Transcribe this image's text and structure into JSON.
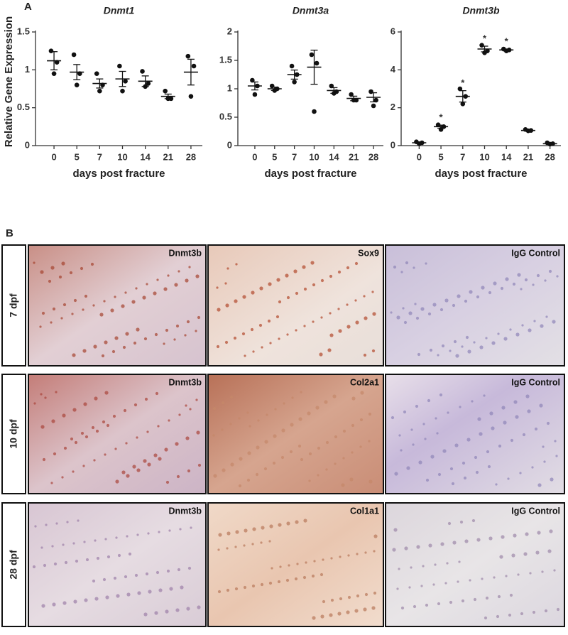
{
  "panel_a": "A",
  "panel_b": "B",
  "chart_data": [
    {
      "type": "dot",
      "title": "Dnmt1",
      "y_label": "Relative Gene Expression",
      "x_label": "days post fracture",
      "categories": [
        "0",
        "5",
        "7",
        "10",
        "14",
        "21",
        "28"
      ],
      "values": [
        1.12,
        0.97,
        0.82,
        0.88,
        0.85,
        0.65,
        0.97
      ],
      "errors": [
        0.12,
        0.1,
        0.06,
        0.1,
        0.07,
        0.03,
        0.17
      ],
      "replicates": [
        [
          1.25,
          1.1,
          0.95
        ],
        [
          1.2,
          0.95,
          0.8
        ],
        [
          0.95,
          0.8,
          0.72
        ],
        [
          1.05,
          0.85,
          0.72
        ],
        [
          0.98,
          0.82,
          0.78
        ],
        [
          0.72,
          0.62,
          0.62
        ],
        [
          1.18,
          1.05,
          0.65
        ]
      ],
      "annotations": [
        null,
        null,
        null,
        null,
        null,
        null,
        null
      ],
      "ylim": [
        0,
        1.5
      ],
      "yticks": [
        0,
        0.5,
        1,
        1.5
      ],
      "color": "#111111"
    },
    {
      "type": "dot",
      "title": "Dnmt3a",
      "x_label": "days post fracture",
      "categories": [
        "0",
        "5",
        "7",
        "10",
        "14",
        "21",
        "28"
      ],
      "values": [
        1.05,
        1.0,
        1.25,
        1.38,
        0.97,
        0.83,
        0.85
      ],
      "errors": [
        0.07,
        0.03,
        0.08,
        0.3,
        0.05,
        0.04,
        0.08
      ],
      "replicates": [
        [
          1.15,
          1.05,
          0.9
        ],
        [
          1.05,
          1.0,
          0.97
        ],
        [
          1.4,
          1.25,
          1.12
        ],
        [
          1.6,
          1.45,
          0.6
        ],
        [
          1.05,
          0.95,
          0.92
        ],
        [
          0.9,
          0.8,
          0.8
        ],
        [
          0.95,
          0.8,
          0.7
        ]
      ],
      "annotations": [
        null,
        null,
        null,
        null,
        null,
        null,
        null
      ],
      "ylim": [
        0,
        2
      ],
      "yticks": [
        0,
        0.5,
        1,
        1.5,
        2
      ],
      "color": "#111111"
    },
    {
      "type": "dot",
      "title": "Dnmt3b",
      "x_label": "days post fracture",
      "categories": [
        "0",
        "5",
        "7",
        "10",
        "14",
        "21",
        "28"
      ],
      "values": [
        0.15,
        1.0,
        2.6,
        5.1,
        5.05,
        0.8,
        0.1
      ],
      "errors": [
        0.03,
        0.08,
        0.3,
        0.15,
        0.05,
        0.03,
        0.02
      ],
      "replicates": [
        [
          0.2,
          0.15,
          0.1
        ],
        [
          1.1,
          1.0,
          0.85
        ],
        [
          3.0,
          2.6,
          2.2
        ],
        [
          5.3,
          5.0,
          4.9
        ],
        [
          5.1,
          5.05,
          5.0
        ],
        [
          0.85,
          0.8,
          0.78
        ],
        [
          0.15,
          0.1,
          0.08
        ]
      ],
      "annotations": [
        null,
        "*",
        "*",
        "*",
        "*",
        null,
        null
      ],
      "ylim": [
        0,
        6
      ],
      "yticks": [
        0,
        2,
        4,
        6
      ],
      "color": "#111111"
    }
  ],
  "histology": {
    "rows": [
      {
        "label": "7 dpf",
        "panels": [
          "Dnmt3b",
          "Sox9",
          "IgG Control"
        ]
      },
      {
        "label": "10 dpf",
        "panels": [
          "Dnmt3b",
          "Col2a1",
          "IgG Control"
        ]
      },
      {
        "label": "28 dpf",
        "panels": [
          "Dnmt3b",
          "Col1a1",
          "IgG Control"
        ]
      }
    ]
  }
}
